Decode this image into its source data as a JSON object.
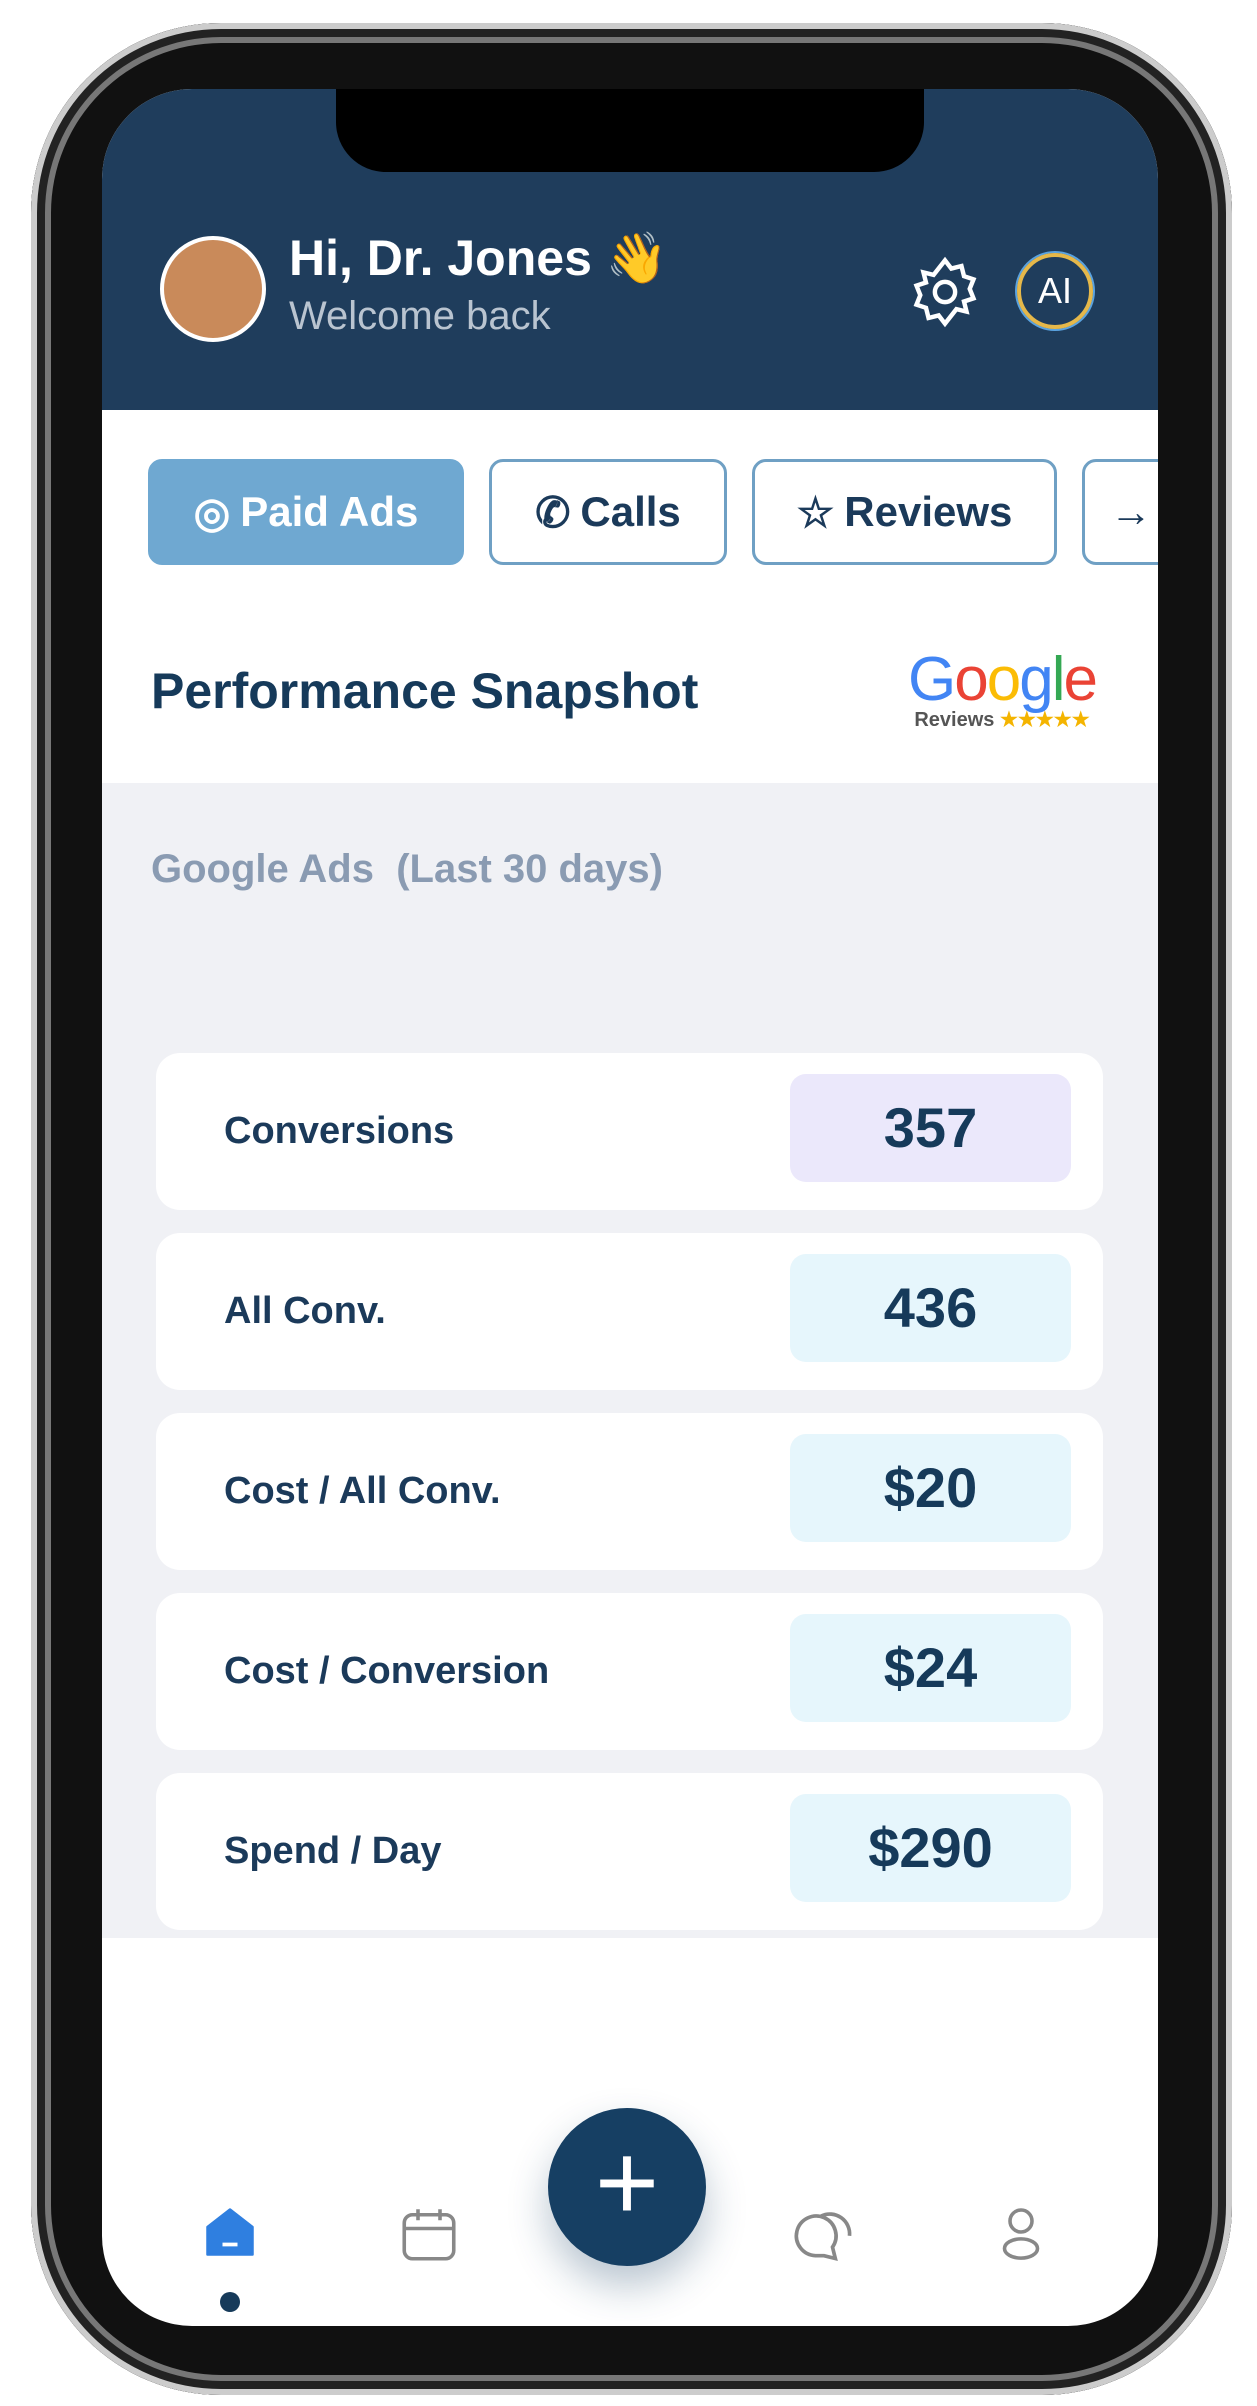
{
  "header": {
    "greeting": "Hi, Dr. Jones 👋",
    "subtitle": "Welcome back",
    "ai_button": "AI"
  },
  "tabs": [
    "Paid Ads",
    "Calls",
    "Reviews"
  ],
  "section": {
    "title": "Performance Snapshot",
    "badge": {
      "brand": "Google",
      "caption": "Reviews"
    }
  },
  "metrics": {
    "title": "Google Ads  (Last 30 days)",
    "rows": [
      {
        "label": "Conversions",
        "value": "357"
      },
      {
        "label": "All Conv.",
        "value": "436"
      },
      {
        "label": "Cost / All Conv.",
        "value": "$20"
      },
      {
        "label": "Cost / Conversion",
        "value": "$24"
      },
      {
        "label": "Spend / Day",
        "value": "$290"
      }
    ]
  }
}
